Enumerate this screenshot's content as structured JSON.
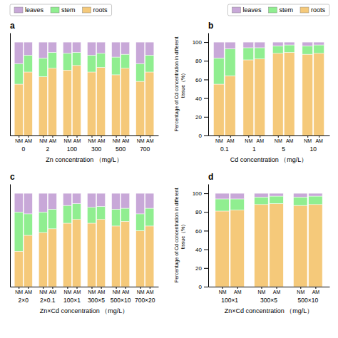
{
  "chart_data": [
    {
      "type": "bar",
      "stacked": true,
      "title": "a",
      "xlabel": "Zn concentration （mg/L）",
      "categories": [
        "NM",
        "AM",
        "NM",
        "AM",
        "NM",
        "AM",
        "NM",
        "AM",
        "NM",
        "AM",
        "NM",
        "AM"
      ],
      "groups": [
        "0",
        "2",
        "100",
        "300",
        "500",
        "700"
      ],
      "series": [
        {
          "name": "roots",
          "color": "#F5C97A",
          "values": [
            55,
            68,
            63,
            72,
            70,
            75,
            68,
            73,
            65,
            72,
            58,
            68
          ]
        },
        {
          "name": "stem",
          "color": "#90EE90",
          "values": [
            22,
            18,
            20,
            17,
            18,
            14,
            18,
            15,
            19,
            15,
            19,
            18
          ]
        },
        {
          "name": "leaves",
          "color": "#C8A8D8",
          "values": [
            23,
            14,
            17,
            11,
            12,
            11,
            14,
            12,
            16,
            13,
            23,
            14
          ]
        }
      ],
      "ylim": [
        0,
        110
      ],
      "tick_labels": "x",
      "legend": "upper left"
    },
    {
      "type": "bar",
      "stacked": true,
      "title": "b",
      "xlabel": "Cd concentration （mg/L）",
      "ylabel": "Percentage of Cd concentration in different\ntissue（%）",
      "categories": [
        "NM",
        "AM",
        "NM",
        "AM",
        "NM",
        "AM",
        "NM",
        "AM"
      ],
      "groups": [
        "0.1",
        "1",
        "5",
        "10"
      ],
      "series": [
        {
          "name": "roots",
          "color": "#F5C97A",
          "values": [
            55,
            64,
            81,
            82,
            88,
            89,
            87,
            88
          ]
        },
        {
          "name": "stem",
          "color": "#90EE90",
          "values": [
            28,
            29,
            13,
            12,
            8,
            8,
            9,
            9
          ]
        },
        {
          "name": "leaves",
          "color": "#C8A8D8",
          "values": [
            17,
            7,
            6,
            6,
            4,
            3,
            4,
            3
          ]
        }
      ],
      "ylim": [
        0,
        110
      ],
      "yticks": [
        0,
        20,
        40,
        60,
        80,
        100
      ],
      "legend": "upper right"
    },
    {
      "type": "bar",
      "stacked": true,
      "title": "c",
      "xlabel": "Zn×Cd concentration （mg/L）",
      "categories": [
        "NM",
        "AM",
        "NM",
        "AM",
        "NM",
        "AM",
        "NM",
        "AM",
        "NM",
        "AM",
        "NM",
        "AM"
      ],
      "groups": [
        "2×0",
        "2×0.1",
        "100×1",
        "300×5",
        "500×10",
        "700×20"
      ],
      "series": [
        {
          "name": "roots",
          "color": "#F5C97A",
          "values": [
            38,
            55,
            58,
            62,
            68,
            72,
            68,
            72,
            65,
            70,
            60,
            65
          ]
        },
        {
          "name": "stem",
          "color": "#90EE90",
          "values": [
            42,
            23,
            22,
            21,
            19,
            17,
            17,
            14,
            18,
            14,
            18,
            19
          ]
        },
        {
          "name": "leaves",
          "color": "#C8A8D8",
          "values": [
            20,
            22,
            20,
            17,
            13,
            11,
            15,
            14,
            17,
            16,
            22,
            16
          ]
        }
      ],
      "ylim": [
        0,
        110
      ],
      "tick_labels": "x"
    },
    {
      "type": "bar",
      "stacked": true,
      "title": "d",
      "xlabel": "Zn×Cd concentration （mg/L）",
      "ylabel": "Percentage of Cd concentration in different\ntissue（%）",
      "categories": [
        "NM",
        "AM",
        "NM",
        "AM",
        "NM",
        "AM"
      ],
      "groups": [
        "100×1",
        "300×5",
        "500×10"
      ],
      "series": [
        {
          "name": "roots",
          "color": "#F5C97A",
          "values": [
            81,
            82,
            88,
            89,
            87,
            88
          ]
        },
        {
          "name": "stem",
          "color": "#90EE90",
          "values": [
            13,
            12,
            8,
            8,
            9,
            9
          ]
        },
        {
          "name": "leaves",
          "color": "#C8A8D8",
          "values": [
            6,
            6,
            4,
            3,
            4,
            3
          ]
        }
      ],
      "ylim": [
        0,
        110
      ],
      "yticks": [
        0,
        20,
        40,
        60,
        80,
        100
      ]
    }
  ]
}
